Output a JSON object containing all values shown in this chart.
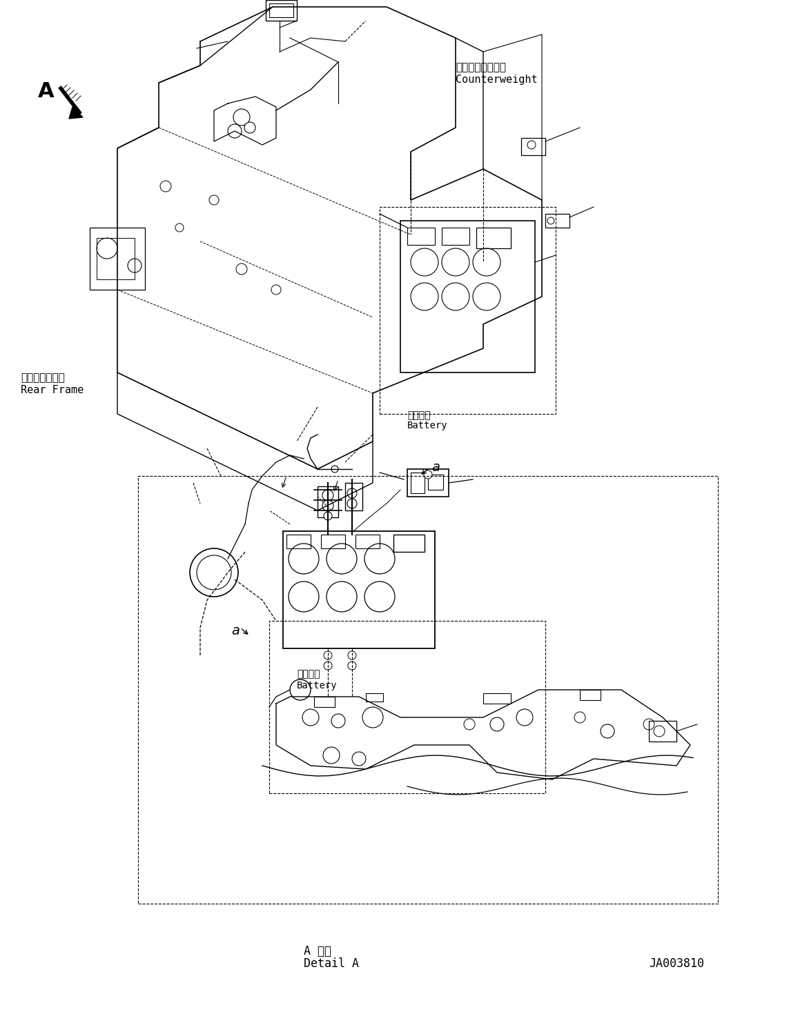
{
  "title": "",
  "bg_color": "#ffffff",
  "line_color": "#000000",
  "figsize": [
    11.43,
    14.99
  ],
  "dpi": 100,
  "labels": {
    "counterweight_jp": "カウンタウェイト",
    "counterweight_en": "Counterweight",
    "rear_frame_jp": "リヤーフレーム",
    "rear_frame_en": "Rear Frame",
    "battery_jp_1": "バッテリ",
    "battery_en_1": "Battery",
    "battery_jp_2": "バッテリ",
    "battery_en_2": "Battery",
    "detail_jp": "A 詳細",
    "detail_en": "Detail A",
    "doc_number": "JA003810",
    "label_a": "A",
    "label_a_small_1": "a",
    "label_a_small_2": "a"
  }
}
